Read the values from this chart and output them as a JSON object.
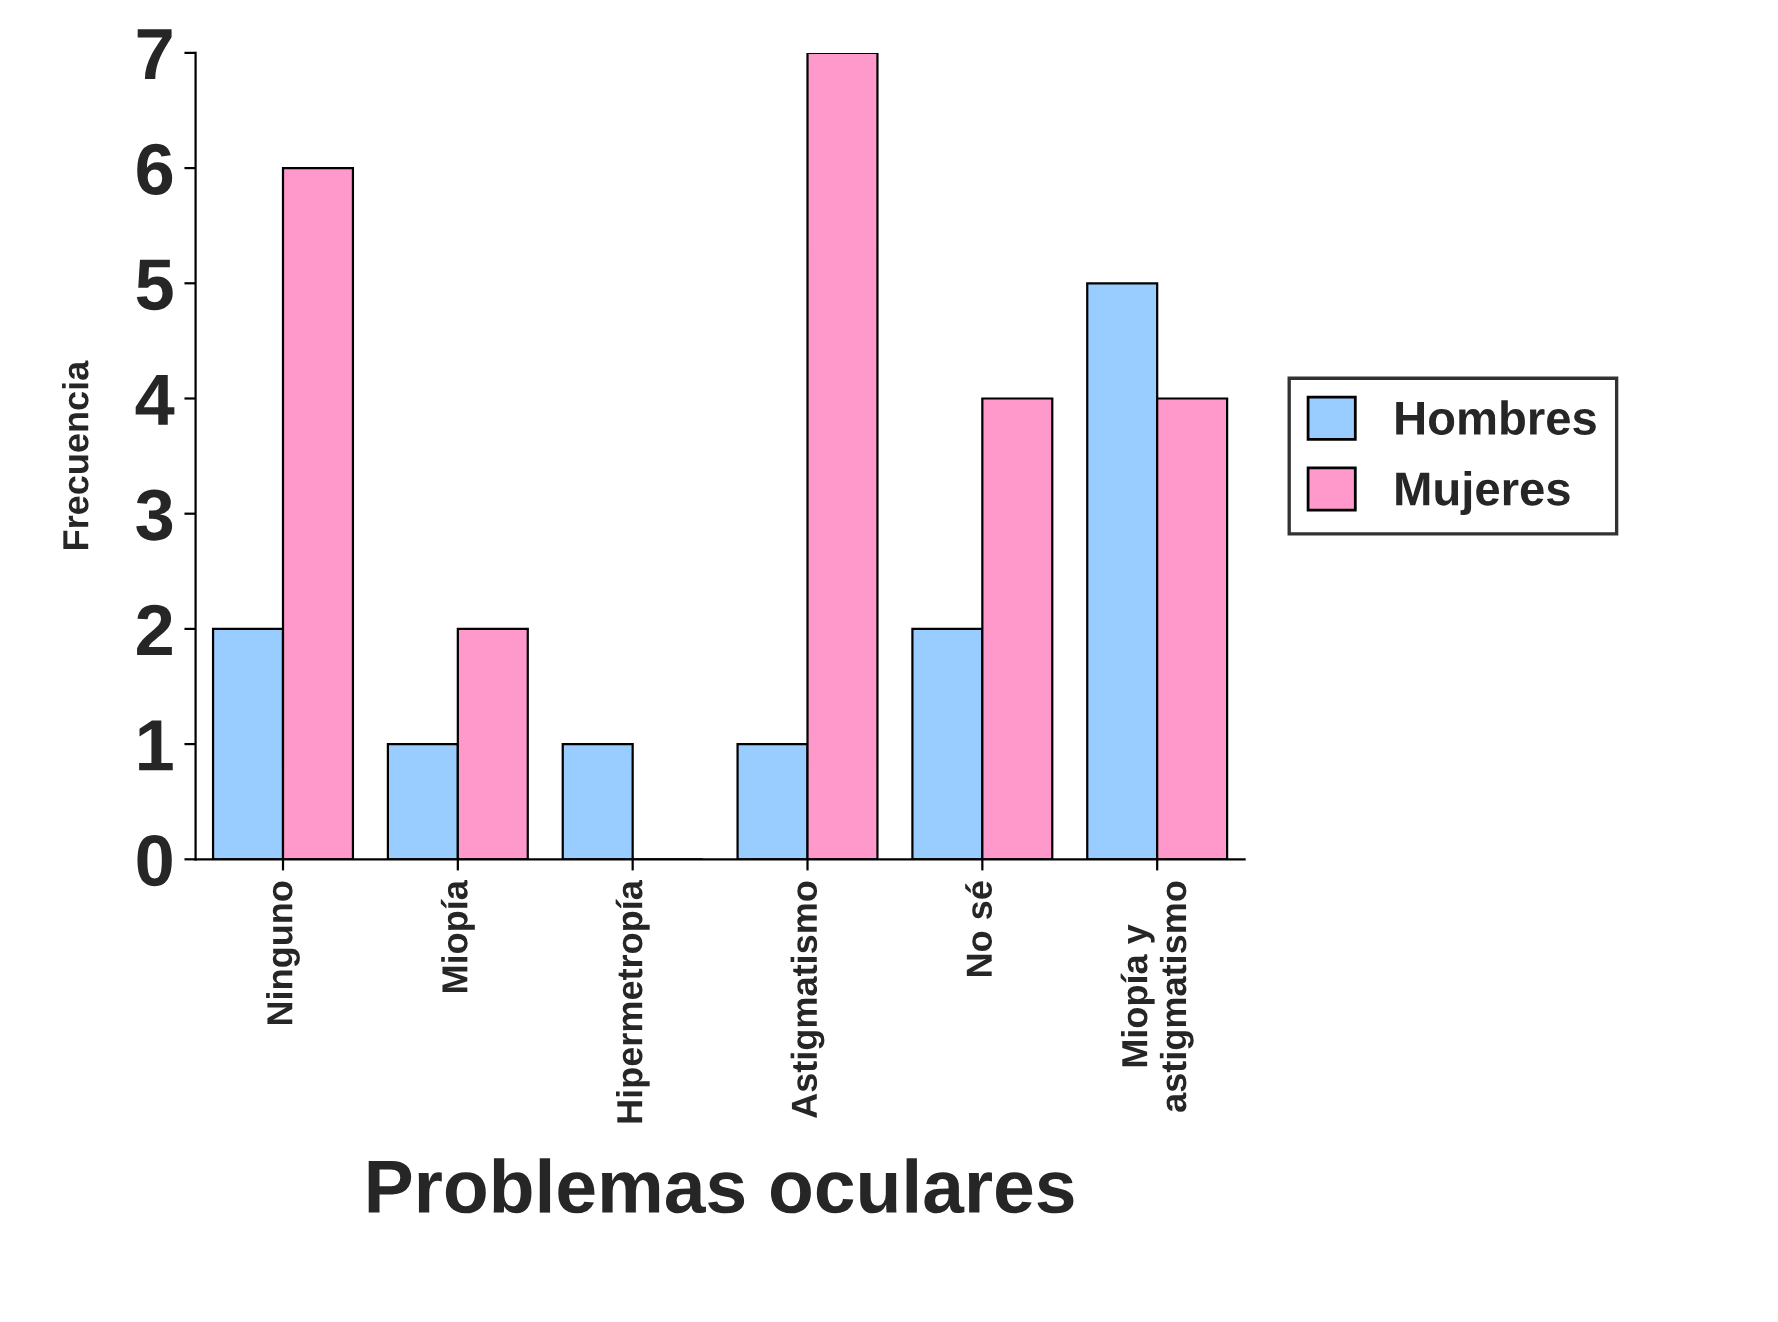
{
  "chart_data": {
    "type": "bar",
    "xlabel": "Problemas oculares",
    "ylabel": "Frecuencia",
    "categories": [
      "Ninguno",
      "Miopía",
      "Hipermetropía",
      "Astigmatismo",
      "No sé",
      "Miopía y\nastigmatismo"
    ],
    "series": [
      {
        "name": "Hombres",
        "color": "#99ccff",
        "values": [
          2,
          1,
          1,
          1,
          2,
          5
        ]
      },
      {
        "name": "Mujeres",
        "color": "#ff99cc",
        "values": [
          6,
          2,
          0,
          7,
          4,
          4
        ]
      }
    ],
    "ylim": [
      0,
      7
    ],
    "yticks": [
      0,
      1,
      2,
      3,
      4,
      5,
      6,
      7
    ],
    "grid": false,
    "legend": "right"
  }
}
